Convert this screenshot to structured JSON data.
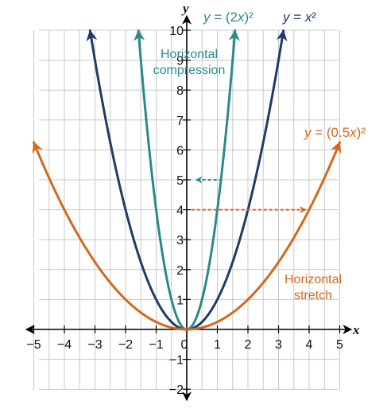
{
  "chart_data": {
    "type": "line",
    "xlabel": "x",
    "ylabel": "y",
    "xlim": [
      -5,
      5
    ],
    "ylim": [
      -2,
      10
    ],
    "x_ticks": [
      "−5",
      "−4",
      "−3",
      "−2",
      "−1",
      "0",
      "1",
      "2",
      "3",
      "4",
      "5"
    ],
    "y_ticks": [
      "−2",
      "−1",
      "1",
      "2",
      "3",
      "4",
      "5",
      "6",
      "7",
      "8",
      "9",
      "10"
    ],
    "grid": true,
    "series": [
      {
        "name": "y = x²",
        "label_parts": [
          "y",
          " = ",
          "x",
          "²"
        ],
        "color": "#1f3b66",
        "coef": 1,
        "x_range": [
          -3.16,
          3.16
        ]
      },
      {
        "name": "y = (2x)²",
        "label_parts": [
          "y",
          " = (2",
          "x",
          ")²"
        ],
        "color": "#2a8a8a",
        "coef": 2,
        "x_range": [
          -1.58,
          1.58
        ]
      },
      {
        "name": "y = (0.5x)²",
        "label_parts": [
          "y",
          " = (0.5",
          "x",
          ")²"
        ],
        "color": "#d2691e",
        "coef": 0.5,
        "x_range": [
          -5,
          5
        ]
      }
    ],
    "annotations": [
      {
        "text_lines": [
          "Horizontal",
          "compression"
        ],
        "color": "#2a8a8a",
        "arrow": {
          "from": [
            1.16,
            5
          ],
          "to": [
            0.3,
            5
          ]
        }
      },
      {
        "text_lines": [
          "Horizontal",
          "stretch"
        ],
        "color": "#d2691e",
        "arrow": {
          "from": [
            0.15,
            4
          ],
          "to": [
            3.9,
            4
          ]
        }
      }
    ]
  }
}
